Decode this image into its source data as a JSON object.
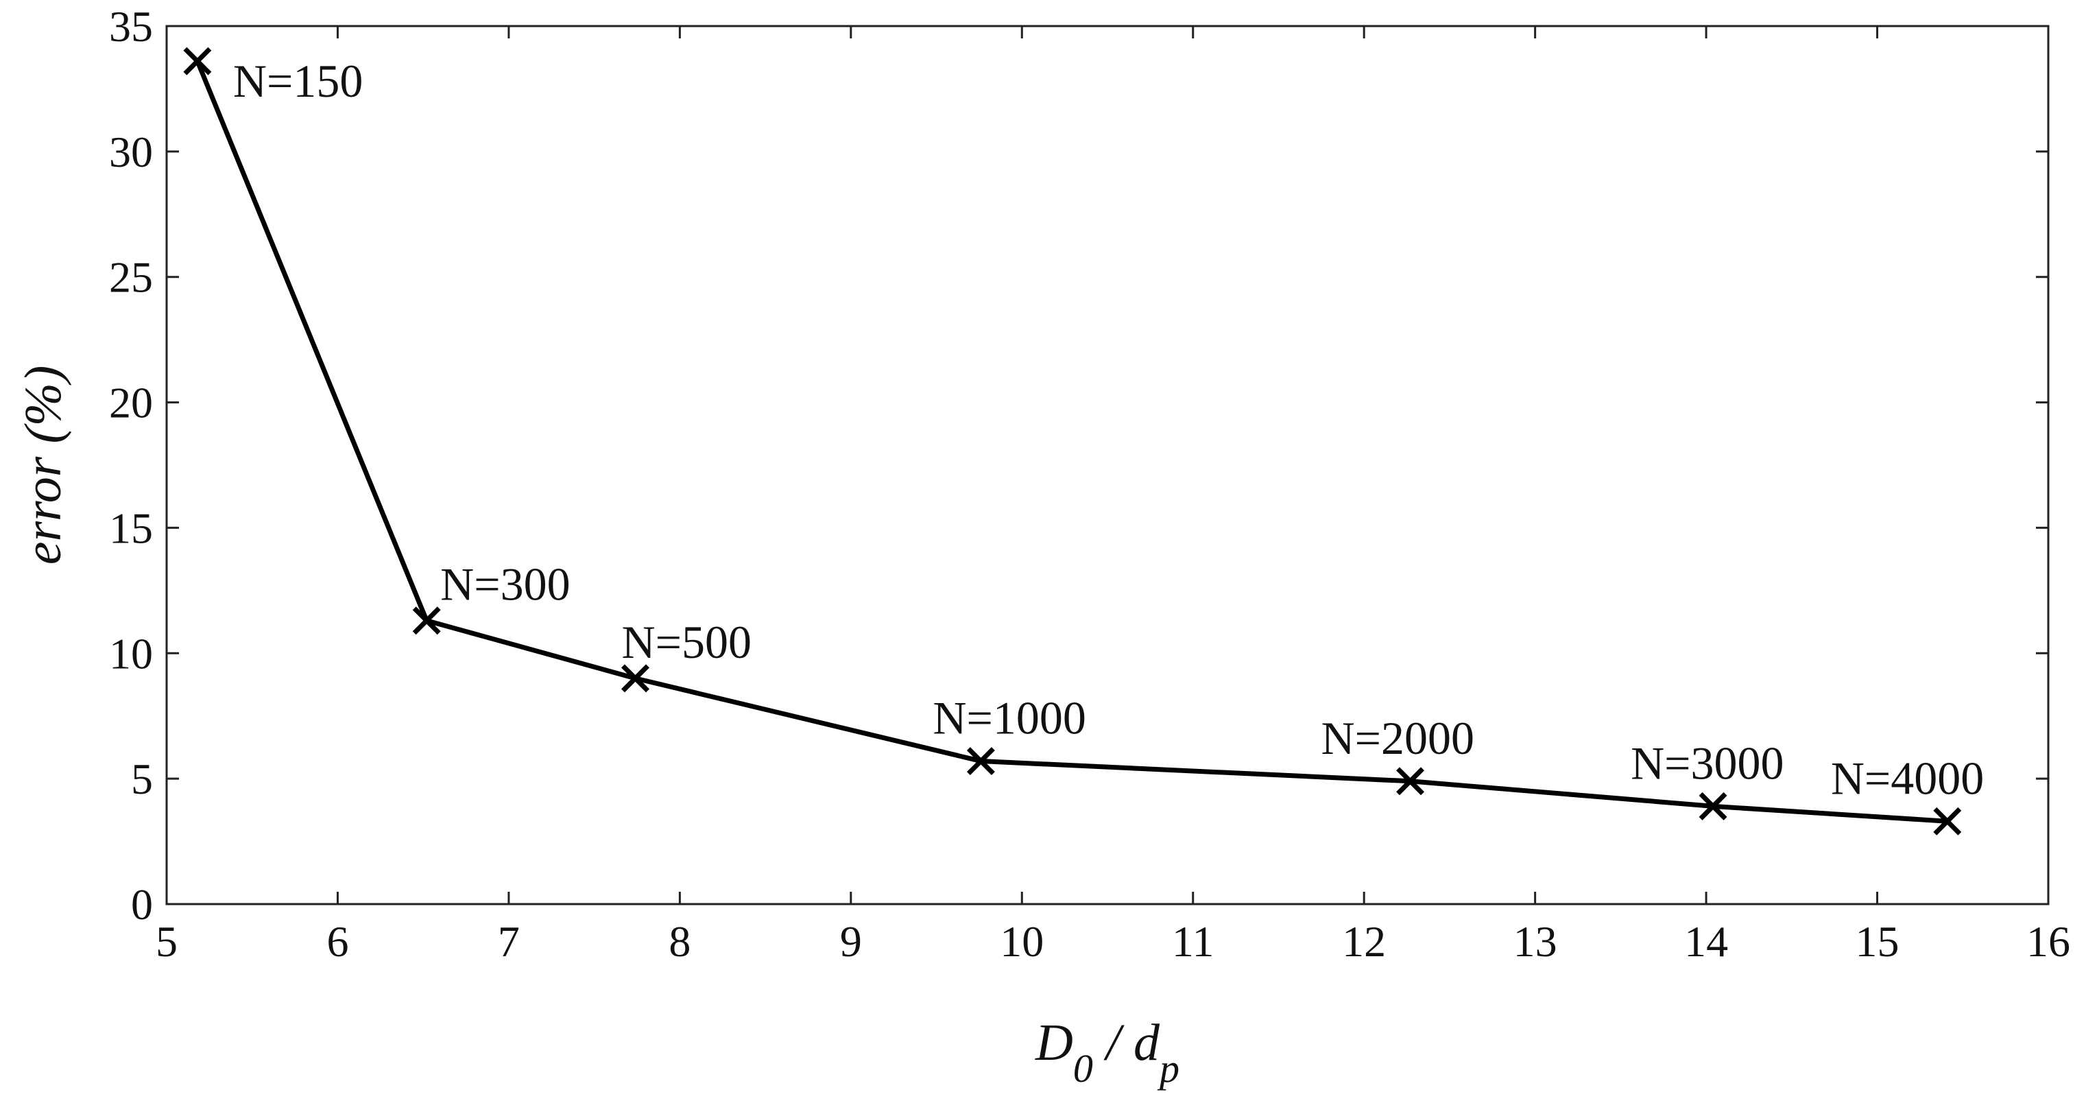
{
  "chart_data": {
    "type": "line",
    "title": "",
    "xlabel": {
      "main": "D",
      "sub_main": "0",
      "sep": " / ",
      "second": "d",
      "sub_second": "p"
    },
    "ylabel": "error (%)",
    "xlim": [
      5,
      16
    ],
    "ylim": [
      0,
      35
    ],
    "xticks": [
      "5",
      "6",
      "7",
      "8",
      "9",
      "10",
      "11",
      "12",
      "13",
      "14",
      "15",
      "16"
    ],
    "yticks": [
      "0",
      "5",
      "10",
      "15",
      "20",
      "25",
      "30",
      "35"
    ],
    "grid": false,
    "legend": "none",
    "series": [
      {
        "color": "#000000",
        "marker": "x",
        "x": [
          5.18,
          6.52,
          7.74,
          9.76,
          12.27,
          14.04,
          15.41
        ],
        "y": [
          33.6,
          11.3,
          9.0,
          5.7,
          4.9,
          3.9,
          3.3
        ],
        "labels": [
          "N=150",
          "N=300",
          "N=500",
          "N=1000",
          "N=2000",
          "N=3000",
          "N=4000"
        ]
      }
    ]
  }
}
